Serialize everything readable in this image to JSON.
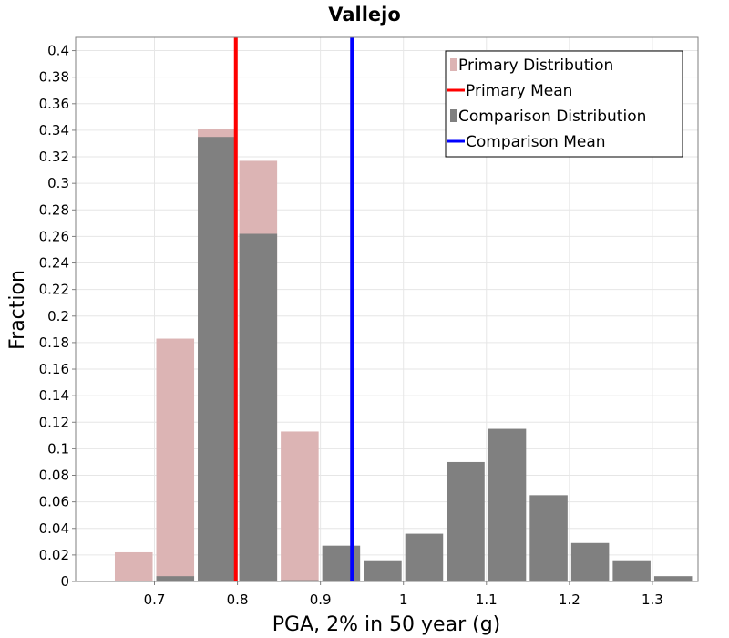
{
  "chart_data": {
    "type": "bar",
    "title": "Vallejo",
    "xlabel": "PGA, 2% in 50 year (g)",
    "ylabel": "Fraction",
    "xlim": [
      0.605,
      1.355
    ],
    "ylim": [
      0,
      0.41
    ],
    "bin_width": 0.05,
    "xticks": [
      "0.7",
      "0.8",
      "0.9",
      "1",
      "1.1",
      "1.2",
      "1.3"
    ],
    "yticks": [
      "0",
      "0.02",
      "0.04",
      "0.06",
      "0.08",
      "0.1",
      "0.12",
      "0.14",
      "0.16",
      "0.18",
      "0.2",
      "0.22",
      "0.24",
      "0.26",
      "0.28",
      "0.3",
      "0.32",
      "0.34",
      "0.36",
      "0.38",
      "0.4"
    ],
    "series": [
      {
        "name": "Primary Distribution",
        "color": "#dcb4b4",
        "x": [
          0.675,
          0.725,
          0.775,
          0.825,
          0.875
        ],
        "values": [
          0.022,
          0.183,
          0.341,
          0.317,
          0.113
        ]
      },
      {
        "name": "Comparison Distribution",
        "color": "#808080",
        "x": [
          0.725,
          0.775,
          0.825,
          0.875,
          0.925,
          0.975,
          1.025,
          1.075,
          1.125,
          1.175,
          1.225,
          1.275,
          1.325
        ],
        "values": [
          0.004,
          0.335,
          0.262,
          0.001,
          0.027,
          0.016,
          0.036,
          0.09,
          0.115,
          0.065,
          0.029,
          0.016,
          0.004
        ]
      }
    ],
    "means": [
      {
        "name": "Primary Mean",
        "color": "#ff0000",
        "value": 0.798
      },
      {
        "name": "Comparison Mean",
        "color": "#0000ff",
        "value": 0.938
      }
    ],
    "legend": {
      "position": "top-right",
      "entries": [
        {
          "label": "Primary Distribution",
          "kind": "bar",
          "color": "#dcb4b4"
        },
        {
          "label": "Primary Mean",
          "kind": "line",
          "color": "#ff0000"
        },
        {
          "label": "Comparison Distribution",
          "kind": "bar",
          "color": "#808080"
        },
        {
          "label": "Comparison Mean",
          "kind": "line",
          "color": "#0000ff"
        }
      ]
    },
    "grid": true
  }
}
